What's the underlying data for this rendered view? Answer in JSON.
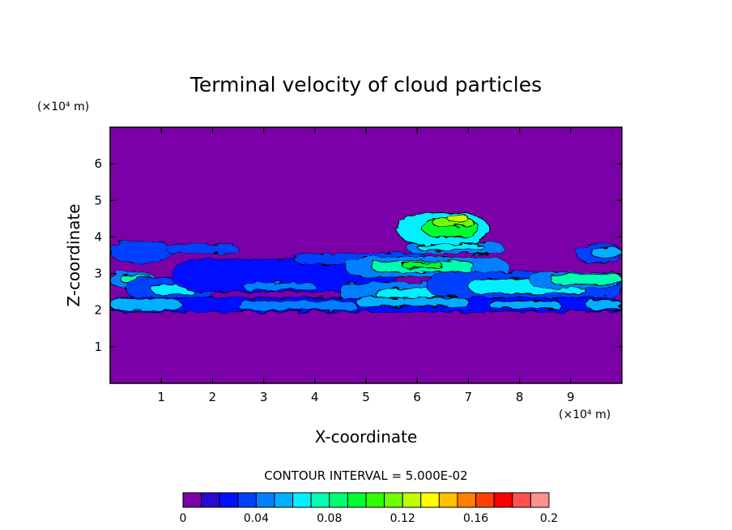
{
  "chart_data": {
    "type": "heatmap",
    "title": "Terminal velocity of cloud particles",
    "xlabel": "X-coordinate",
    "ylabel": "Z-coordinate",
    "x_unit": "(×10⁴ m)",
    "y_unit": "(×10⁴ m)",
    "xlim": [
      0,
      10
    ],
    "ylim": [
      0,
      7
    ],
    "xticks": [
      1,
      2,
      3,
      4,
      5,
      6,
      7,
      8,
      9
    ],
    "yticks": [
      1,
      2,
      3,
      4,
      5,
      6
    ],
    "contour_interval": "CONTOUR INTERVAL = 5.000E-02",
    "colorbar": {
      "range": [
        0,
        0.2
      ],
      "tick_values": [
        0,
        0.04,
        0.08,
        0.12,
        0.16,
        0.2
      ],
      "tick_labels": [
        "0",
        "0.04",
        "0.08",
        "0.12",
        "0.16",
        "0.2"
      ],
      "colors": [
        "#7b00a8",
        "#2a0ad0",
        "#0010ff",
        "#0040ff",
        "#0080ff",
        "#00b0ff",
        "#00f0ff",
        "#00ffb0",
        "#00ff70",
        "#00ff30",
        "#30ff00",
        "#70ff00",
        "#c0ff00",
        "#ffff00",
        "#ffc000",
        "#ff8000",
        "#ff4000",
        "#ff0000",
        "#ff5050",
        "#ff9090"
      ]
    },
    "background_color": "#7b00a8",
    "features": [
      {
        "x": [
          0.0,
          1.2
        ],
        "y": [
          3.3,
          3.9
        ],
        "level": 3
      },
      {
        "x": [
          1.1,
          2.5
        ],
        "y": [
          3.55,
          3.8
        ],
        "level": 3
      },
      {
        "x": [
          0.0,
          0.9
        ],
        "y": [
          2.6,
          3.05
        ],
        "level": 4
      },
      {
        "x": [
          0.2,
          0.8
        ],
        "y": [
          2.75,
          2.95
        ],
        "level": 7
      },
      {
        "x": [
          0.3,
          2.1
        ],
        "y": [
          2.3,
          2.9
        ],
        "level": 3
      },
      {
        "x": [
          0.8,
          1.7
        ],
        "y": [
          2.45,
          2.7
        ],
        "level": 6
      },
      {
        "x": [
          1.2,
          5.6
        ],
        "y": [
          2.5,
          3.4
        ],
        "level": 2
      },
      {
        "x": [
          2.6,
          4.0
        ],
        "y": [
          2.55,
          2.75
        ],
        "level": 4
      },
      {
        "x": [
          3.6,
          6.2
        ],
        "y": [
          3.25,
          3.55
        ],
        "level": 3
      },
      {
        "x": [
          4.6,
          7.8
        ],
        "y": [
          2.9,
          3.45
        ],
        "level": 4
      },
      {
        "x": [
          5.1,
          7.1
        ],
        "y": [
          3.05,
          3.35
        ],
        "level": 7
      },
      {
        "x": [
          5.7,
          6.5
        ],
        "y": [
          3.15,
          3.3
        ],
        "level": 9
      },
      {
        "x": [
          5.8,
          7.7
        ],
        "y": [
          3.55,
          3.85
        ],
        "level": 4
      },
      {
        "x": [
          6.0,
          7.3
        ],
        "y": [
          3.65,
          3.8
        ],
        "level": 6
      },
      {
        "x": [
          5.6,
          7.4
        ],
        "y": [
          3.8,
          4.65
        ],
        "level": 6
      },
      {
        "x": [
          6.1,
          7.2
        ],
        "y": [
          4.0,
          4.5
        ],
        "level": 9
      },
      {
        "x": [
          6.3,
          7.1
        ],
        "y": [
          4.3,
          4.5
        ],
        "level": 11
      },
      {
        "x": [
          6.6,
          7.0
        ],
        "y": [
          4.4,
          4.6
        ],
        "level": 12
      },
      {
        "x": [
          4.5,
          9.4
        ],
        "y": [
          2.15,
          2.75
        ],
        "level": 4
      },
      {
        "x": [
          5.2,
          7.4
        ],
        "y": [
          2.25,
          2.6
        ],
        "level": 6
      },
      {
        "x": [
          6.2,
          10.0
        ],
        "y": [
          2.3,
          3.05
        ],
        "level": 3
      },
      {
        "x": [
          7.0,
          9.3
        ],
        "y": [
          2.45,
          2.85
        ],
        "level": 6
      },
      {
        "x": [
          8.2,
          10.0
        ],
        "y": [
          2.6,
          3.05
        ],
        "level": 4
      },
      {
        "x": [
          8.6,
          10.0
        ],
        "y": [
          2.7,
          3.0
        ],
        "level": 7
      },
      {
        "x": [
          9.1,
          10.0
        ],
        "y": [
          3.3,
          3.8
        ],
        "level": 3
      },
      {
        "x": [
          9.4,
          10.0
        ],
        "y": [
          3.45,
          3.7
        ],
        "level": 5
      },
      {
        "x": [
          0.0,
          10.0
        ],
        "y": [
          1.95,
          2.35
        ],
        "level": 2
      },
      {
        "x": [
          0.0,
          1.4
        ],
        "y": [
          2.0,
          2.3
        ],
        "level": 5
      },
      {
        "x": [
          2.5,
          4.8
        ],
        "y": [
          2.0,
          2.25
        ],
        "level": 4
      },
      {
        "x": [
          4.8,
          7.0
        ],
        "y": [
          2.1,
          2.35
        ],
        "level": 5
      },
      {
        "x": [
          7.4,
          8.8
        ],
        "y": [
          2.05,
          2.25
        ],
        "level": 5
      },
      {
        "x": [
          9.3,
          10.0
        ],
        "y": [
          2.0,
          2.3
        ],
        "level": 5
      }
    ]
  }
}
